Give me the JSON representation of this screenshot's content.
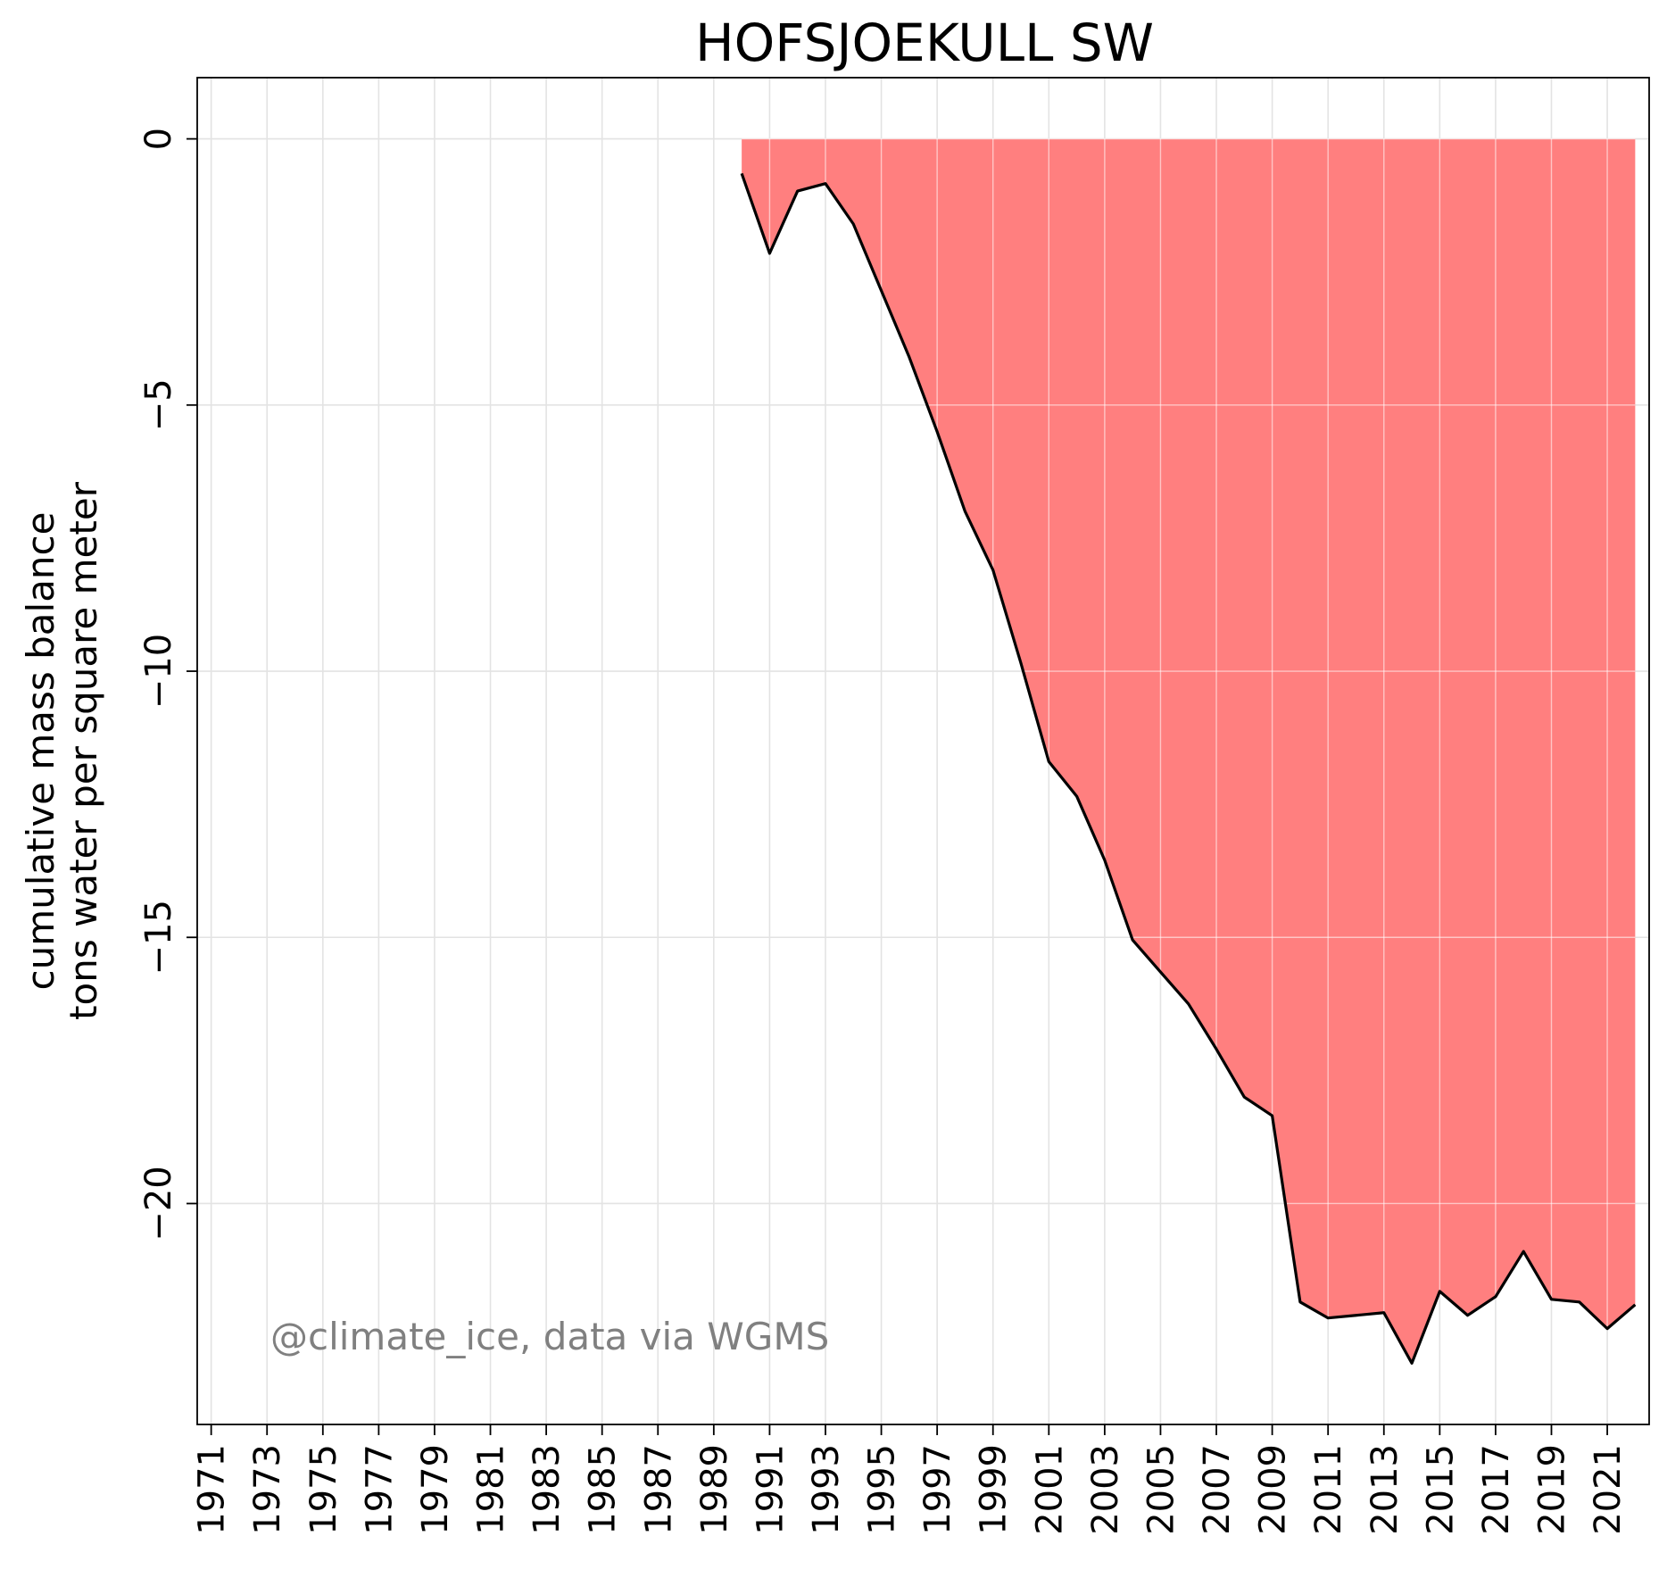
{
  "chart_data": {
    "type": "area",
    "title": "HOFSJOEKULL SW",
    "ylabel_line1": "cumulative mass balance",
    "ylabel_line2": "tons water per square meter",
    "xlabel": "",
    "annotation": "@climate_ice, data via WGMS",
    "xlim": [
      1970.5,
      2022.5
    ],
    "ylim": [
      -24.15,
      1.15
    ],
    "x_ticks": [
      1971,
      1973,
      1975,
      1977,
      1979,
      1981,
      1983,
      1985,
      1987,
      1989,
      1991,
      1993,
      1995,
      1997,
      1999,
      2001,
      2003,
      2005,
      2007,
      2009,
      2011,
      2013,
      2015,
      2017,
      2019,
      2021
    ],
    "x_tick_labels": [
      "1971",
      "1973",
      "1975",
      "1977",
      "1979",
      "1981",
      "1983",
      "1985",
      "1987",
      "1989",
      "1991",
      "1993",
      "1995",
      "1997",
      "1999",
      "2001",
      "2003",
      "2005",
      "2007",
      "2009",
      "2011",
      "2013",
      "2015",
      "2017",
      "2019",
      "2021"
    ],
    "y_ticks": [
      0,
      -5,
      -10,
      -15,
      -20
    ],
    "y_tick_labels": [
      "0",
      "−5",
      "−10",
      "−15",
      "−20"
    ],
    "grid": true,
    "fill_color": "#ff7f7f",
    "line_color": "#000000",
    "series": [
      {
        "x": [
          1990,
          1991,
          1992,
          1993,
          1994,
          1995,
          1996,
          1997,
          1998,
          1999,
          2000,
          2001,
          2002,
          2003,
          2004,
          2005,
          2006,
          2007,
          2008,
          2009,
          2010,
          2011,
          2012,
          2013,
          2014,
          2015,
          2016,
          2017,
          2018,
          2019,
          2020,
          2021,
          2022
        ],
        "values": [
          -0.65,
          -2.15,
          -0.98,
          -0.84,
          -1.6,
          -2.85,
          -4.1,
          -5.5,
          -7.0,
          -8.1,
          -9.85,
          -11.7,
          -12.35,
          -13.55,
          -15.05,
          -15.65,
          -16.25,
          -17.1,
          -18.0,
          -18.35,
          -21.85,
          -22.15,
          -22.1,
          -22.05,
          -23.0,
          -21.65,
          -22.1,
          -21.75,
          -20.9,
          -21.8,
          -21.85,
          -22.35,
          -21.9
        ]
      }
    ]
  }
}
